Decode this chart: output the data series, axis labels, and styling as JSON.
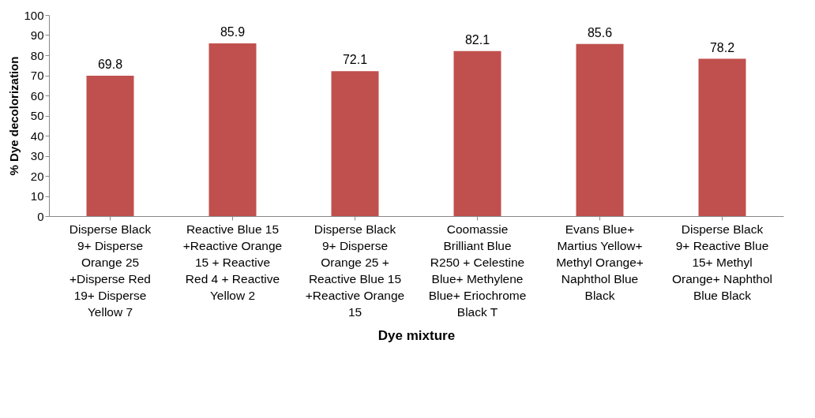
{
  "chart_data": {
    "type": "bar",
    "xlabel": "Dye mixture",
    "ylabel": "% Dye decolorization",
    "categories": [
      "Disperse Black 9+ Disperse Orange 25 +Disperse Red 19+ Disperse Yellow 7",
      "Reactive Blue 15 +Reactive Orange 15 + Reactive Red 4 + Reactive Yellow 2",
      "Disperse Black 9+ Disperse Orange 25 + Reactive Blue 15 +Reactive Orange 15",
      "Coomassie Brilliant Blue R250 + Celestine Blue+ Methylene Blue+ Eriochrome Black T",
      "Evans Blue+ Martius Yellow+ Methyl Orange+ Naphthol Blue Black",
      "Disperse Black 9+ Reactive Blue 15+ Methyl Orange+ Naphthol Blue Black"
    ],
    "values": [
      69.8,
      85.9,
      72.1,
      82.1,
      85.6,
      78.2
    ],
    "color": "#c0504d",
    "ylim": [
      0,
      100
    ],
    "yticks": [
      0,
      10,
      20,
      30,
      40,
      50,
      60,
      70,
      80,
      90,
      100
    ],
    "grid": false,
    "data_labels": true
  }
}
